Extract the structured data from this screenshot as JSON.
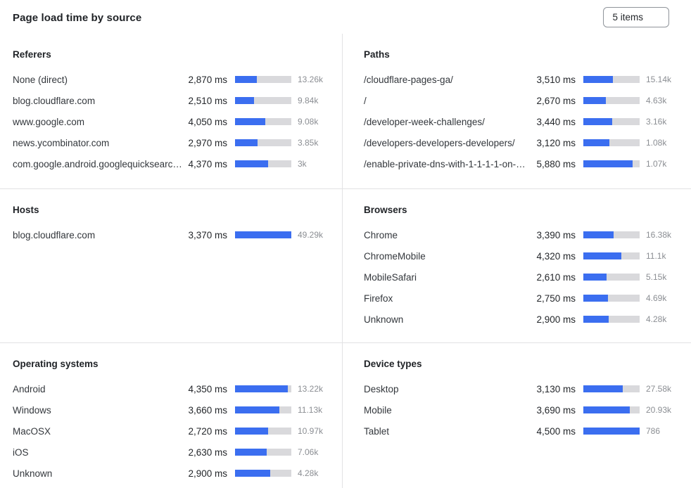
{
  "header": {
    "title": "Page load time by source",
    "items_selector": {
      "label": "5 items",
      "icon": "caret-down-icon"
    }
  },
  "colors": {
    "bar_fill": "#3b6ef0",
    "bar_track": "#d9d9dc",
    "divider": "#e2e2e4",
    "count_text": "#8b8e93"
  },
  "chart_data": [
    {
      "panel": "referers",
      "title": "Referers",
      "type": "bar",
      "unit": "ms",
      "rows": [
        {
          "label": "None (direct)",
          "value_ms": 2870,
          "value_display": "2,870 ms",
          "count_display": "13.26k",
          "bar_pct": 38.5
        },
        {
          "label": "blog.cloudflare.com",
          "value_ms": 2510,
          "value_display": "2,510 ms",
          "count_display": "9.84k",
          "bar_pct": 33.5
        },
        {
          "label": "www.google.com",
          "value_ms": 4050,
          "value_display": "4,050 ms",
          "count_display": "9.08k",
          "bar_pct": 54
        },
        {
          "label": "news.ycombinator.com",
          "value_ms": 2970,
          "value_display": "2,970 ms",
          "count_display": "3.85k",
          "bar_pct": 40
        },
        {
          "label": "com.google.android.googlequicksearc…",
          "value_ms": 4370,
          "value_display": "4,370 ms",
          "count_display": "3k",
          "bar_pct": 58.5
        }
      ]
    },
    {
      "panel": "paths",
      "title": "Paths",
      "type": "bar",
      "unit": "ms",
      "rows": [
        {
          "label": "/cloudflare-pages-ga/",
          "value_ms": 3510,
          "value_display": "3,510 ms",
          "count_display": "15.14k",
          "bar_pct": 52.5
        },
        {
          "label": "/",
          "value_ms": 2670,
          "value_display": "2,670 ms",
          "count_display": "4.63k",
          "bar_pct": 40
        },
        {
          "label": "/developer-week-challenges/",
          "value_ms": 3440,
          "value_display": "3,440 ms",
          "count_display": "3.16k",
          "bar_pct": 51
        },
        {
          "label": "/developers-developers-developers/",
          "value_ms": 3120,
          "value_display": "3,120 ms",
          "count_display": "1.08k",
          "bar_pct": 46.5
        },
        {
          "label": "/enable-private-dns-with-1-1-1-1-on-…",
          "value_ms": 5880,
          "value_display": "5,880 ms",
          "count_display": "1.07k",
          "bar_pct": 88
        }
      ]
    },
    {
      "panel": "hosts",
      "title": "Hosts",
      "type": "bar",
      "unit": "ms",
      "rows": [
        {
          "label": "blog.cloudflare.com",
          "value_ms": 3370,
          "value_display": "3,370 ms",
          "count_display": "49.29k",
          "bar_pct": 100
        }
      ]
    },
    {
      "panel": "browsers",
      "title": "Browsers",
      "type": "bar",
      "unit": "ms",
      "rows": [
        {
          "label": "Chrome",
          "value_ms": 3390,
          "value_display": "3,390 ms",
          "count_display": "16.38k",
          "bar_pct": 54
        },
        {
          "label": "ChromeMobile",
          "value_ms": 4320,
          "value_display": "4,320 ms",
          "count_display": "11.1k",
          "bar_pct": 68
        },
        {
          "label": "MobileSafari",
          "value_ms": 2610,
          "value_display": "2,610 ms",
          "count_display": "5.15k",
          "bar_pct": 41
        },
        {
          "label": "Firefox",
          "value_ms": 2750,
          "value_display": "2,750 ms",
          "count_display": "4.69k",
          "bar_pct": 43.5
        },
        {
          "label": "Unknown",
          "value_ms": 2900,
          "value_display": "2,900 ms",
          "count_display": "4.28k",
          "bar_pct": 45.5
        }
      ]
    },
    {
      "panel": "operating-systems",
      "title": "Operating systems",
      "type": "bar",
      "unit": "ms",
      "rows": [
        {
          "label": "Android",
          "value_ms": 4350,
          "value_display": "4,350 ms",
          "count_display": "13.22k",
          "bar_pct": 93.5
        },
        {
          "label": "Windows",
          "value_ms": 3660,
          "value_display": "3,660 ms",
          "count_display": "11.13k",
          "bar_pct": 78.5
        },
        {
          "label": "MacOSX",
          "value_ms": 2720,
          "value_display": "2,720 ms",
          "count_display": "10.97k",
          "bar_pct": 58.5
        },
        {
          "label": "iOS",
          "value_ms": 2630,
          "value_display": "2,630 ms",
          "count_display": "7.06k",
          "bar_pct": 56.5
        },
        {
          "label": "Unknown",
          "value_ms": 2900,
          "value_display": "2,900 ms",
          "count_display": "4.28k",
          "bar_pct": 62
        }
      ]
    },
    {
      "panel": "device-types",
      "title": "Device types",
      "type": "bar",
      "unit": "ms",
      "rows": [
        {
          "label": "Desktop",
          "value_ms": 3130,
          "value_display": "3,130 ms",
          "count_display": "27.58k",
          "bar_pct": 69.5
        },
        {
          "label": "Mobile",
          "value_ms": 3690,
          "value_display": "3,690 ms",
          "count_display": "20.93k",
          "bar_pct": 82
        },
        {
          "label": "Tablet",
          "value_ms": 4500,
          "value_display": "4,500 ms",
          "count_display": "786",
          "bar_pct": 100
        }
      ]
    }
  ]
}
